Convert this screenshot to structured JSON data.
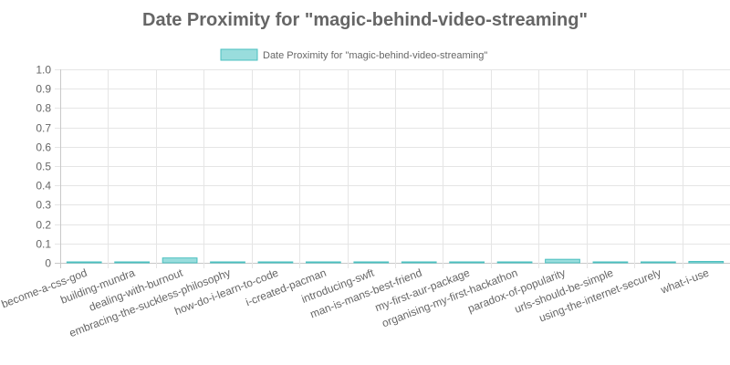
{
  "chart_data": {
    "type": "bar",
    "title": "Date Proximity for \"magic-behind-video-streaming\"",
    "legend": {
      "label": "Date Proximity for \"magic-behind-video-streaming\"",
      "placement": "top"
    },
    "categories": [
      "become-a-css-god",
      "building-mundra",
      "dealing-with-burnout",
      "embracing-the-suckless-philosophy",
      "how-do-i-learn-to-code",
      "i-created-pacman",
      "introducing-swft",
      "man-is-mans-best-friend",
      "my-first-aur-package",
      "organising-my-first-hackathon",
      "paradox-of-popularity",
      "urls-should-be-simple",
      "using-the-internet-securely",
      "what-i-use"
    ],
    "series": [
      {
        "name": "Date Proximity for \"magic-behind-video-streaming\"",
        "values": [
          0.001,
          0.004,
          0.025,
          0.004,
          0.001,
          0.004,
          0.001,
          0.001,
          0.003,
          0.004,
          0.018,
          0.001,
          0.002,
          0.007
        ]
      }
    ],
    "ylim": [
      0,
      1.0
    ],
    "yticks": [
      "1.0",
      "0.9",
      "0.8",
      "0.7",
      "0.6",
      "0.5",
      "0.4",
      "0.3",
      "0.2",
      "0.1",
      "0"
    ],
    "grid": true,
    "colors": {
      "bar_fill": "#99dddd",
      "bar_stroke": "#4bc0c0",
      "grid": "#e5e5e5",
      "text": "#666666"
    }
  }
}
